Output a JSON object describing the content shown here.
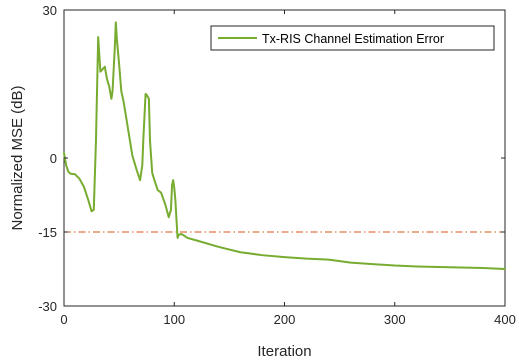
{
  "chart_data": {
    "type": "line",
    "title": "",
    "xlabel": "Iteration",
    "ylabel": "Normalized MSE (dB)",
    "xlim": [
      0,
      400
    ],
    "ylim": [
      -30,
      30
    ],
    "xticks": [
      0,
      100,
      200,
      300,
      400
    ],
    "yticks": [
      -30,
      -15,
      0,
      30
    ],
    "grid": false,
    "legend_placement": "top-right",
    "series": [
      {
        "name": "Tx-RIS Channel Estimation Error",
        "color": "#77AC30",
        "x": [
          0,
          2,
          4,
          6,
          10,
          14,
          18,
          22,
          25,
          27,
          29,
          31,
          33,
          35,
          37,
          39,
          41,
          43,
          44,
          46,
          47,
          48,
          50,
          52,
          54,
          58,
          62,
          66,
          69,
          71,
          72,
          74,
          75,
          77,
          78,
          80,
          82,
          85,
          88,
          92,
          95,
          97,
          98,
          99,
          100,
          101,
          103,
          104,
          106,
          108,
          112,
          120,
          140,
          160,
          180,
          200,
          220,
          240,
          260,
          280,
          300,
          320,
          340,
          360,
          380,
          400
        ],
        "y": [
          1,
          -1.5,
          -2.8,
          -3.2,
          -3.3,
          -4.2,
          -5.8,
          -8.5,
          -10.8,
          -10.5,
          3.5,
          24.5,
          17.5,
          18,
          18.5,
          16,
          14.5,
          12,
          13.5,
          22,
          27.5,
          24,
          19,
          13.5,
          11.5,
          6,
          0.5,
          -2.5,
          -4.5,
          -1.5,
          4,
          13,
          12.8,
          12,
          3.5,
          -3,
          -4.5,
          -6.5,
          -7,
          -9.5,
          -12,
          -10.5,
          -5.5,
          -4.5,
          -6,
          -8.5,
          -16.2,
          -15.6,
          -15.4,
          -15.6,
          -16.2,
          -16.7,
          -18,
          -19.1,
          -19.7,
          -20.1,
          -20.4,
          -20.6,
          -21.2,
          -21.5,
          -21.8,
          -22,
          -22.1,
          -22.2,
          -22.3,
          -22.5
        ]
      }
    ],
    "reference_line": {
      "y": -15,
      "color": "#D95319",
      "style": "dash-dot"
    }
  }
}
